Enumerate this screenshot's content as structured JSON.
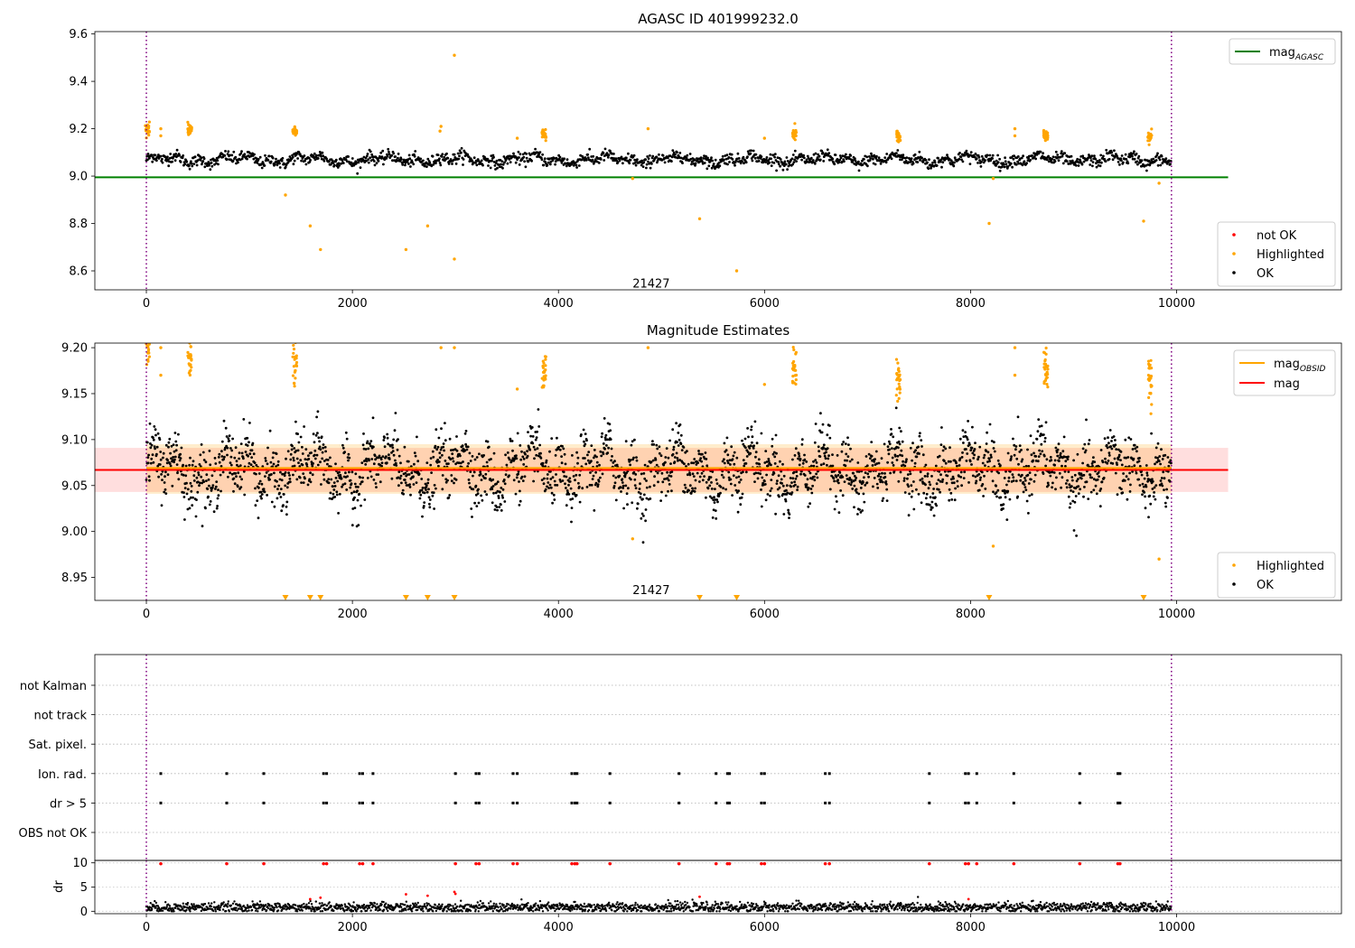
{
  "chart_data": [
    {
      "type": "scatter",
      "title": "AGASC ID 401999232.0",
      "xlim": [
        -500,
        11600
      ],
      "ylim": [
        8.52,
        9.61
      ],
      "xticks": [
        0,
        2000,
        4000,
        6000,
        8000,
        10000
      ],
      "yticks": [
        8.6,
        8.8,
        9.0,
        9.2,
        9.4,
        9.6
      ],
      "tick_labels_x": [
        "0",
        "2000",
        "4000",
        "6000",
        "8000",
        "10000"
      ],
      "tick_labels_y": [
        "8.6",
        "8.8",
        "9.0",
        "9.2",
        "9.4",
        "9.6"
      ],
      "vlines": [
        0,
        9950
      ],
      "annotation": {
        "text": "21427",
        "x": 4900,
        "y": 8.545
      },
      "lines": [
        {
          "name": "mag_AGASC",
          "x": [
            -500,
            10500
          ],
          "y": [
            8.995,
            8.995
          ],
          "color": "#008000"
        }
      ],
      "legend_lines": [
        {
          "label": "mag",
          "sub": "AGASC",
          "color": "#008000"
        }
      ],
      "legend_points": [
        {
          "label": "not OK",
          "color": "#ff0000"
        },
        {
          "label": "Highlighted",
          "color": "#ffa500"
        },
        {
          "label": "OK",
          "color": "#000000"
        }
      ],
      "ok_band": {
        "x_range": [
          0,
          9950
        ],
        "baseline": 9.07,
        "amplitude": 0.035,
        "color": "#000000"
      },
      "highlighted_clusters": [
        {
          "x": 10,
          "y": 9.2
        },
        {
          "x": 420,
          "y": 9.2
        },
        {
          "x": 1440,
          "y": 9.19
        },
        {
          "x": 3860,
          "y": 9.18
        },
        {
          "x": 6290,
          "y": 9.18
        },
        {
          "x": 7300,
          "y": 9.17
        },
        {
          "x": 8730,
          "y": 9.17
        },
        {
          "x": 9740,
          "y": 9.17
        }
      ],
      "highlighted_points": [
        {
          "x": 140,
          "y": 9.2
        },
        {
          "x": 140,
          "y": 9.17
        },
        {
          "x": 1350,
          "y": 8.92
        },
        {
          "x": 1590,
          "y": 8.79
        },
        {
          "x": 1690,
          "y": 8.69
        },
        {
          "x": 2520,
          "y": 8.69
        },
        {
          "x": 2730,
          "y": 8.79
        },
        {
          "x": 2860,
          "y": 9.21
        },
        {
          "x": 2850,
          "y": 9.19
        },
        {
          "x": 2990,
          "y": 9.51
        },
        {
          "x": 2990,
          "y": 8.65
        },
        {
          "x": 3600,
          "y": 9.16
        },
        {
          "x": 4720,
          "y": 8.99
        },
        {
          "x": 4870,
          "y": 9.2
        },
        {
          "x": 5370,
          "y": 8.82
        },
        {
          "x": 5730,
          "y": 8.6
        },
        {
          "x": 6000,
          "y": 9.16
        },
        {
          "x": 8180,
          "y": 8.8
        },
        {
          "x": 8220,
          "y": 8.99
        },
        {
          "x": 8430,
          "y": 9.2
        },
        {
          "x": 8430,
          "y": 9.17
        },
        {
          "x": 9680,
          "y": 8.81
        },
        {
          "x": 9830,
          "y": 8.97
        }
      ]
    },
    {
      "type": "scatter",
      "title": "Magnitude Estimates",
      "xlim": [
        -500,
        11600
      ],
      "ylim": [
        8.925,
        9.205
      ],
      "xticks": [
        0,
        2000,
        4000,
        6000,
        8000,
        10000
      ],
      "yticks": [
        8.95,
        9.0,
        9.05,
        9.1,
        9.15,
        9.2
      ],
      "tick_labels_x": [
        "0",
        "2000",
        "4000",
        "6000",
        "8000",
        "10000"
      ],
      "tick_labels_y": [
        "8.95",
        "9.00",
        "9.05",
        "9.10",
        "9.15",
        "9.20"
      ],
      "vlines": [
        0,
        9950
      ],
      "annotation": {
        "text": "21427",
        "x": 4900,
        "y": 8.936
      },
      "band": {
        "x_range": [
          -500,
          10500
        ],
        "y_range": [
          9.043,
          9.091
        ],
        "color": "#ff000022"
      },
      "band_inner": {
        "x_range": [
          0,
          9950
        ],
        "y_range": [
          9.041,
          9.095
        ],
        "color": "#ffa50033"
      },
      "lines": [
        {
          "name": "mag_OBSID",
          "x": [
            0,
            9950
          ],
          "y": [
            9.069,
            9.069
          ],
          "color": "#ffa500"
        },
        {
          "name": "mag",
          "x": [
            -500,
            10500
          ],
          "y": [
            9.067,
            9.067
          ],
          "color": "#ff0000"
        }
      ],
      "legend_lines": [
        {
          "label": "mag",
          "sub": "OBSID",
          "color": "#ffa500"
        },
        {
          "label": "mag",
          "sub": "",
          "color": "#ff0000"
        }
      ],
      "legend_points": [
        {
          "label": "Highlighted",
          "color": "#ffa500"
        },
        {
          "label": "OK",
          "color": "#000000"
        }
      ],
      "ok_band": {
        "x_range": [
          0,
          9950
        ],
        "baseline": 9.067,
        "amplitude": 0.045,
        "color": "#000000"
      },
      "highlighted_clusters": [
        {
          "x": 10,
          "y": 9.2
        },
        {
          "x": 420,
          "y": 9.195
        },
        {
          "x": 1440,
          "y": 9.185
        },
        {
          "x": 3860,
          "y": 9.175
        },
        {
          "x": 6290,
          "y": 9.18
        },
        {
          "x": 7300,
          "y": 9.165
        },
        {
          "x": 8730,
          "y": 9.175
        },
        {
          "x": 9740,
          "y": 9.165
        }
      ],
      "highlighted_points": [
        {
          "x": 140,
          "y": 9.2
        },
        {
          "x": 140,
          "y": 9.17
        },
        {
          "x": 2860,
          "y": 9.2
        },
        {
          "x": 2990,
          "y": 9.2
        },
        {
          "x": 3600,
          "y": 9.155
        },
        {
          "x": 4720,
          "y": 8.992
        },
        {
          "x": 4870,
          "y": 9.2
        },
        {
          "x": 6000,
          "y": 9.16
        },
        {
          "x": 8220,
          "y": 8.984
        },
        {
          "x": 8430,
          "y": 9.2
        },
        {
          "x": 8430,
          "y": 9.17
        },
        {
          "x": 9830,
          "y": 8.97
        }
      ],
      "clipped_markers": {
        "y": 8.928,
        "x": [
          1350,
          1590,
          1690,
          2520,
          2730,
          2990,
          5370,
          5730,
          8180,
          9680
        ],
        "color": "#ffa500"
      }
    },
    {
      "type": "scatter",
      "title": "",
      "xlim": [
        -500,
        11600
      ],
      "xticks": [
        0,
        2000,
        4000,
        6000,
        8000,
        10000
      ],
      "tick_labels_x": [
        "0",
        "2000",
        "4000",
        "6000",
        "8000",
        "10000"
      ],
      "flag_rows": [
        "not Kalman",
        "not track",
        "Sat. pixel.",
        "Ion. rad.",
        "dr > 5",
        "OBS not OK"
      ],
      "flagged_x": [
        140,
        780,
        1140,
        1720,
        1750,
        2070,
        2100,
        2200,
        3000,
        3200,
        3230,
        3560,
        3600,
        4130,
        4160,
        4180,
        4500,
        5170,
        5530,
        5640,
        5660,
        5970,
        6000,
        6590,
        6630,
        7600,
        7950,
        7980,
        8060,
        8420,
        9060,
        9430,
        9450
      ],
      "flagged_rows": [
        "Ion. rad.",
        "dr > 5"
      ],
      "vlines": [
        0,
        9950
      ]
    },
    {
      "type": "scatter",
      "title": "",
      "ylabel": "dr",
      "xlim": [
        -500,
        11600
      ],
      "ylim": [
        -0.5,
        10.5
      ],
      "yticks": [
        0,
        5,
        10
      ],
      "tick_labels_y": [
        "0",
        "5",
        "10"
      ],
      "xticks": [
        0,
        2000,
        4000,
        6000,
        8000,
        10000
      ],
      "tick_labels_x": [
        "0",
        "2000",
        "4000",
        "6000",
        "8000",
        "10000"
      ],
      "dr_band": {
        "x_range": [
          0,
          9950
        ],
        "baseline": 0.8,
        "amplitude": 0.5
      },
      "dr_capped": {
        "y": 10,
        "x": [
          140,
          780,
          1140,
          1720,
          1750,
          2070,
          2100,
          2200,
          3000,
          3200,
          3230,
          3560,
          3600,
          4130,
          4160,
          4180,
          4500,
          5170,
          5530,
          5640,
          5660,
          5970,
          6000,
          6590,
          6630,
          7600,
          7950,
          7980,
          8060,
          8420,
          9060,
          9430,
          9450
        ],
        "color": "#ff0000"
      },
      "dr_outliers": [
        {
          "x": 2520,
          "y": 3.5
        },
        {
          "x": 2730,
          "y": 3.2
        },
        {
          "x": 2990,
          "y": 4.0
        },
        {
          "x": 3000,
          "y": 3.6
        },
        {
          "x": 5370,
          "y": 3.0
        },
        {
          "x": 1590,
          "y": 2.5
        },
        {
          "x": 1690,
          "y": 2.8
        },
        {
          "x": 7980,
          "y": 2.5
        }
      ],
      "vlines": [
        0,
        9950
      ]
    }
  ]
}
